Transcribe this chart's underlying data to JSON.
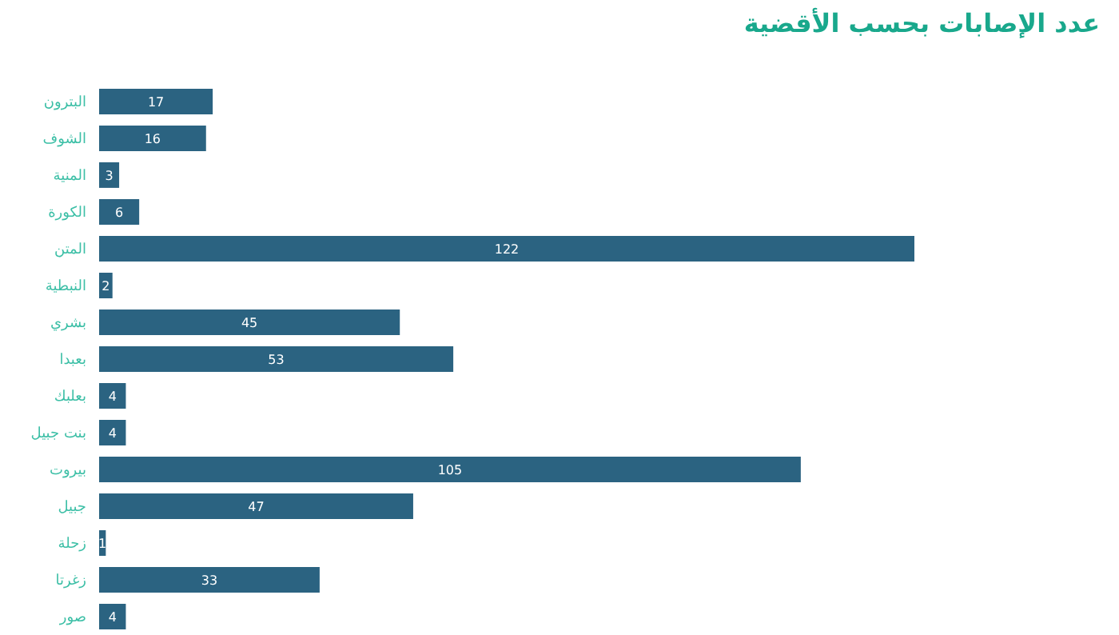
{
  "chart_data": {
    "type": "bar",
    "orientation": "horizontal",
    "title": "عدد الإصابات بحسب الأقضية",
    "categories": [
      "البترون",
      "الشوف",
      "المنية",
      "الكورة",
      "المتن",
      "النبطية",
      "بشري",
      "بعبدا",
      "بعلبك",
      "بنت جبيل",
      "بيروت",
      "جبيل",
      "زحلة",
      "زغرتا",
      "صور"
    ],
    "values": [
      17,
      16,
      3,
      6,
      122,
      2,
      45,
      53,
      4,
      4,
      105,
      47,
      1,
      33,
      4
    ],
    "color": "#2b6381",
    "data_labels": true
  }
}
